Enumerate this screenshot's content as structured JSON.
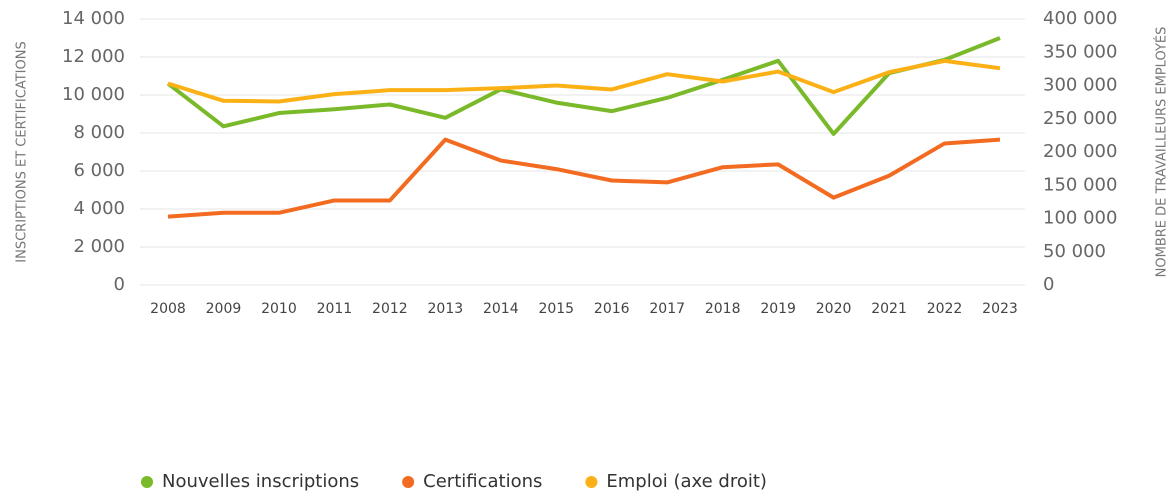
{
  "chart_data": {
    "type": "line",
    "y_label": "INSCRIPTIONS ET CERTIFICATIONS",
    "y2_label": "NOMBRE DE TRAVAILLEURS EMPLOYÉS",
    "categories": [
      "2008",
      "2009",
      "2010",
      "2011",
      "2012",
      "2013",
      "2014",
      "2015",
      "2016",
      "2017",
      "2018",
      "2019",
      "2020",
      "2021",
      "2022",
      "2023"
    ],
    "ylim": [
      0,
      14000
    ],
    "yticks": [
      0,
      {
        "value": 2000,
        "label": "2 000"
      },
      {
        "value": 4000,
        "label": "4 000"
      },
      {
        "value": 6000,
        "label": "6 000"
      },
      {
        "value": 8000,
        "label": "8 000"
      },
      {
        "value": 10000,
        "label": "10 000"
      },
      {
        "value": 12000,
        "label": "12 000"
      },
      {
        "value": 14000,
        "label": "14 000"
      }
    ],
    "y2lim": [
      0,
      400000
    ],
    "y2ticks": [
      0,
      {
        "value": 50000,
        "label": "50 000"
      },
      {
        "value": 100000,
        "label": "100 000"
      },
      {
        "value": 150000,
        "label": "150 000"
      },
      {
        "value": 200000,
        "label": "200 000"
      },
      {
        "value": 250000,
        "label": "250 000"
      },
      {
        "value": 300000,
        "label": "300 000"
      },
      {
        "value": 350000,
        "label": "350 000"
      },
      {
        "value": 400000,
        "label": "400 000"
      }
    ],
    "grid": true,
    "legend": "bottom",
    "series": [
      {
        "name": "Nouvelles inscriptions",
        "color": "#7ab929",
        "values": [
          10600,
          8350,
          9050,
          9250,
          9500,
          8800,
          10300,
          9600,
          9150,
          9850,
          10800,
          11800,
          7950,
          11150,
          11850,
          13000
        ]
      },
      {
        "name": "Certifications",
        "color": "#f26b21",
        "values": [
          3600,
          3800,
          3800,
          4450,
          4450,
          7650,
          6550,
          6100,
          5500,
          5400,
          6200,
          6350,
          4600,
          5750,
          7450,
          7650
        ]
      },
      {
        "name": "Emploi (axe droit)",
        "color": "#fbb116",
        "axis": "y2",
        "values": [
          303000,
          277000,
          276000,
          287000,
          293000,
          293000,
          296000,
          300000,
          294000,
          317000,
          306000,
          321000,
          290000,
          320000,
          337000,
          326000
        ]
      }
    ]
  }
}
